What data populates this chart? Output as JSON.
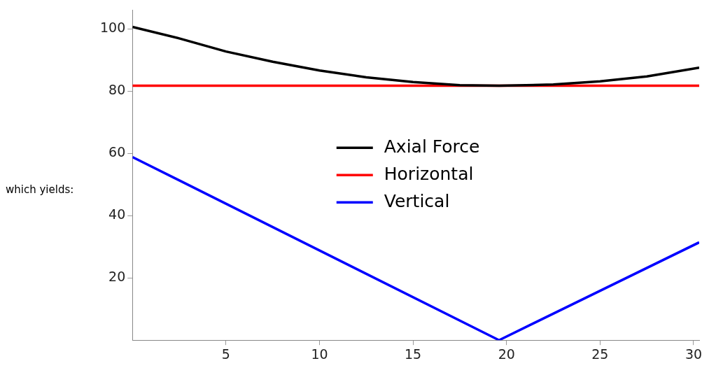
{
  "chart_data": {
    "type": "line",
    "x": [
      0,
      2.5,
      5,
      7.5,
      10,
      12.5,
      15,
      17.5,
      19.6,
      22.5,
      25,
      27.5,
      30.3
    ],
    "series": [
      {
        "name": "Axial Force",
        "color": "#000000",
        "values": [
          100.6,
          96.9,
          92.7,
          89.4,
          86.6,
          84.4,
          82.9,
          81.9,
          81.7,
          82.1,
          83.1,
          84.7,
          87.5
        ]
      },
      {
        "name": "Horizontal",
        "color": "#ff0000",
        "x": [
          0,
          30.3
        ],
        "values": [
          81.7,
          81.7
        ]
      },
      {
        "name": "Vertical",
        "color": "#0000ff",
        "x": [
          0,
          19.6,
          30.3
        ],
        "values": [
          58.8,
          0,
          31.4
        ]
      }
    ],
    "xlim": [
      0,
      30.3
    ],
    "xticks": [
      5,
      10,
      15,
      20,
      25,
      30
    ],
    "ylim": [
      0,
      106
    ],
    "yticks": [
      20,
      40,
      60,
      80,
      100
    ],
    "legend": "center",
    "grid": false,
    "marker": "none",
    "line_style": "solid",
    "annotations": [
      "which yields:"
    ]
  }
}
